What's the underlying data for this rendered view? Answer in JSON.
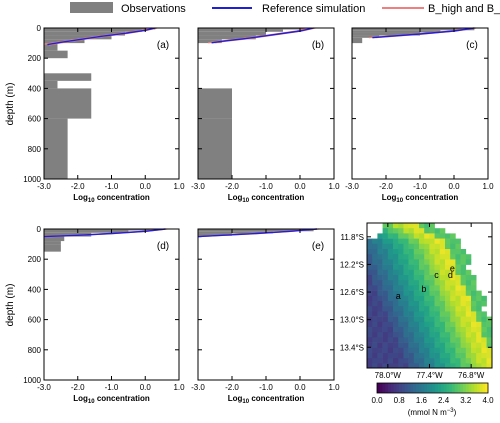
{
  "legend": {
    "items": [
      {
        "label": "Observations",
        "color": "#808080"
      },
      {
        "label": "Reference simulation",
        "color": "#1f1fd6"
      },
      {
        "label": "B_high and B_low",
        "color": "#f08080"
      }
    ]
  },
  "axis_labels": {
    "ylabel": "depth (m)",
    "xlabel_prefix": "Log",
    "xlabel_sub": "10",
    "xlabel_suffix": " concentration"
  },
  "chart_data": [
    {
      "type": "bar",
      "panel": "(a)",
      "xlim": [
        -3.0,
        1.0
      ],
      "ylim": [
        1000,
        0
      ],
      "xticks": [
        "-3.0",
        "-2.0",
        "-1.0",
        "0.0",
        "1.0"
      ],
      "yticks": [
        "0",
        "200",
        "400",
        "600",
        "800",
        "1000"
      ],
      "observations": [
        {
          "top": 0,
          "bottom": 10,
          "value": 0.3
        },
        {
          "top": 10,
          "bottom": 25,
          "value": -0.1
        },
        {
          "top": 25,
          "bottom": 50,
          "value": -0.6
        },
        {
          "top": 50,
          "bottom": 75,
          "value": -1.0
        },
        {
          "top": 75,
          "bottom": 100,
          "value": -1.8
        },
        {
          "top": 100,
          "bottom": 150,
          "value": -2.6
        },
        {
          "top": 150,
          "bottom": 200,
          "value": -2.3
        },
        {
          "top": 200,
          "bottom": 250,
          "value": -3.0
        },
        {
          "top": 250,
          "bottom": 300,
          "value": -3.0
        },
        {
          "top": 300,
          "bottom": 350,
          "value": -1.6
        },
        {
          "top": 350,
          "bottom": 400,
          "value": -2.6
        },
        {
          "top": 400,
          "bottom": 600,
          "value": -1.6
        },
        {
          "top": 600,
          "bottom": 1000,
          "value": -2.3
        }
      ],
      "reference": [
        [
          0.3,
          0
        ],
        [
          0.0,
          15
        ],
        [
          -0.6,
          35
        ],
        [
          -1.3,
          55
        ],
        [
          -2.0,
          78
        ],
        [
          -2.5,
          95
        ],
        [
          -2.9,
          110
        ]
      ],
      "bhigh": [
        [
          0.2,
          0
        ],
        [
          -0.1,
          15
        ],
        [
          -0.7,
          35
        ],
        [
          -1.4,
          55
        ],
        [
          -2.1,
          78
        ],
        [
          -2.6,
          95
        ],
        [
          -3.0,
          108
        ]
      ],
      "blow": [
        [
          0.35,
          0
        ],
        [
          0.05,
          15
        ],
        [
          -0.5,
          35
        ],
        [
          -1.2,
          55
        ],
        [
          -1.9,
          78
        ],
        [
          -2.4,
          95
        ],
        [
          -2.85,
          112
        ]
      ]
    },
    {
      "type": "bar",
      "panel": "(b)",
      "xlim": [
        -3.0,
        1.0
      ],
      "ylim": [
        1000,
        0
      ],
      "xticks": [
        "-3.0",
        "-2.0",
        "-1.0",
        "0.0",
        "1.0"
      ],
      "yticks": [
        "0",
        "200",
        "400",
        "600",
        "800",
        "1000"
      ],
      "observations": [
        {
          "top": 0,
          "bottom": 10,
          "value": 0.3
        },
        {
          "top": 10,
          "bottom": 25,
          "value": -0.5
        },
        {
          "top": 25,
          "bottom": 50,
          "value": -1.0
        },
        {
          "top": 50,
          "bottom": 75,
          "value": -1.3
        },
        {
          "top": 75,
          "bottom": 100,
          "value": -2.3
        },
        {
          "top": 100,
          "bottom": 200,
          "value": -3.0
        },
        {
          "top": 200,
          "bottom": 400,
          "value": -3.0
        },
        {
          "top": 400,
          "bottom": 600,
          "value": -2.0
        },
        {
          "top": 600,
          "bottom": 1000,
          "value": -2.0
        }
      ],
      "reference": [
        [
          0.4,
          0
        ],
        [
          0.0,
          20
        ],
        [
          -0.8,
          45
        ],
        [
          -1.6,
          70
        ],
        [
          -2.3,
          88
        ],
        [
          -2.6,
          98
        ]
      ],
      "bhigh": [
        [
          0.3,
          0
        ],
        [
          -0.1,
          20
        ],
        [
          -0.9,
          45
        ],
        [
          -1.7,
          70
        ],
        [
          -2.4,
          88
        ],
        [
          -2.7,
          98
        ]
      ],
      "blow": [
        [
          0.45,
          0
        ],
        [
          0.05,
          20
        ],
        [
          -0.7,
          45
        ],
        [
          -1.5,
          70
        ],
        [
          -2.2,
          88
        ],
        [
          -2.5,
          98
        ]
      ]
    },
    {
      "type": "bar",
      "panel": "(c)",
      "xlim": [
        -3.0,
        1.0
      ],
      "ylim": [
        1000,
        0
      ],
      "xticks": [
        "-3.0",
        "-2.0",
        "-1.0",
        "0.0",
        "1.0"
      ],
      "yticks": [
        "0",
        "200",
        "400",
        "600",
        "800",
        "1000"
      ],
      "observations": [
        {
          "top": 0,
          "bottom": 15,
          "value": 0.6
        },
        {
          "top": 15,
          "bottom": 30,
          "value": -0.4
        },
        {
          "top": 30,
          "bottom": 50,
          "value": -1.0
        },
        {
          "top": 50,
          "bottom": 65,
          "value": -2.2
        },
        {
          "top": 65,
          "bottom": 100,
          "value": -2.7
        }
      ],
      "reference": [
        [
          0.6,
          0
        ],
        [
          0.0,
          20
        ],
        [
          -1.0,
          40
        ],
        [
          -2.2,
          60
        ],
        [
          -2.4,
          64
        ]
      ],
      "bhigh": [
        [
          0.55,
          0
        ],
        [
          -0.1,
          20
        ],
        [
          -1.1,
          40
        ],
        [
          -2.3,
          60
        ],
        [
          -2.5,
          64
        ]
      ],
      "blow": [
        [
          0.65,
          0
        ],
        [
          0.05,
          20
        ],
        [
          -0.9,
          40
        ],
        [
          -2.1,
          60
        ],
        [
          -2.3,
          64
        ]
      ]
    },
    {
      "type": "bar",
      "panel": "(d)",
      "xlim": [
        -3.0,
        1.0
      ],
      "ylim": [
        1000,
        0
      ],
      "xticks": [
        "-3.0",
        "-2.0",
        "-1.0",
        "0.0",
        "1.0"
      ],
      "yticks": [
        "0",
        "200",
        "400",
        "600",
        "800",
        "1000"
      ],
      "observations": [
        {
          "top": 0,
          "bottom": 10,
          "value": 0.4
        },
        {
          "top": 10,
          "bottom": 25,
          "value": -0.5
        },
        {
          "top": 25,
          "bottom": 50,
          "value": -1.6
        },
        {
          "top": 50,
          "bottom": 80,
          "value": -2.4
        },
        {
          "top": 80,
          "bottom": 100,
          "value": -2.5
        },
        {
          "top": 100,
          "bottom": 150,
          "value": -2.5
        }
      ],
      "reference": [
        [
          0.6,
          0
        ],
        [
          0.0,
          15
        ],
        [
          -1.0,
          30
        ],
        [
          -2.0,
          42
        ],
        [
          -3.0,
          50
        ]
      ],
      "bhigh": [
        [
          0.55,
          0
        ],
        [
          -0.1,
          15
        ],
        [
          -1.1,
          30
        ],
        [
          -2.1,
          42
        ],
        [
          -3.0,
          49
        ]
      ],
      "blow": [
        [
          0.65,
          0
        ],
        [
          0.05,
          15
        ],
        [
          -0.9,
          30
        ],
        [
          -1.9,
          42
        ],
        [
          -3.0,
          52
        ]
      ]
    },
    {
      "type": "bar",
      "panel": "(e)",
      "xlim": [
        -3.0,
        1.0
      ],
      "ylim": [
        1000,
        0
      ],
      "xticks": [
        "-3.0",
        "-2.0",
        "-1.0",
        "0.0",
        "1.0"
      ],
      "yticks": [
        "0",
        "200",
        "400",
        "600",
        "800",
        "1000"
      ],
      "observations": [
        {
          "top": 0,
          "bottom": 15,
          "value": 0.4
        },
        {
          "top": 15,
          "bottom": 30,
          "value": -0.8
        },
        {
          "top": 30,
          "bottom": 45,
          "value": -2.0
        },
        {
          "top": 45,
          "bottom": 55,
          "value": -2.9
        }
      ],
      "reference": [
        [
          0.5,
          0
        ],
        [
          -0.3,
          15
        ],
        [
          -1.3,
          30
        ],
        [
          -2.3,
          42
        ],
        [
          -3.0,
          50
        ]
      ],
      "bhigh": [
        [
          0.45,
          0
        ],
        [
          -0.4,
          15
        ],
        [
          -1.4,
          30
        ],
        [
          -2.4,
          42
        ],
        [
          -3.0,
          49
        ]
      ],
      "blow": [
        [
          0.55,
          0
        ],
        [
          -0.2,
          15
        ],
        [
          -1.2,
          30
        ],
        [
          -2.2,
          42
        ],
        [
          -3.0,
          51
        ]
      ]
    },
    {
      "type": "heatmap",
      "panel": "map",
      "xlim": [
        -78.3,
        -76.5
      ],
      "ylim": [
        -13.7,
        -11.6
      ],
      "xticks": [
        {
          "value": -78.0,
          "label": "78.0°W"
        },
        {
          "value": -77.4,
          "label": "77.4°W"
        },
        {
          "value": -76.8,
          "label": "76.8°W"
        }
      ],
      "yticks": [
        {
          "value": -11.8,
          "label": "11.8°S"
        },
        {
          "value": -12.2,
          "label": "12.2°S"
        },
        {
          "value": -12.6,
          "label": "12.6°S"
        },
        {
          "value": -13.0,
          "label": "13.0°S"
        },
        {
          "value": -13.4,
          "label": "13.4°S"
        }
      ],
      "stations": [
        {
          "label": "a",
          "lon": -77.85,
          "lat": -12.7
        },
        {
          "label": "b",
          "lon": -77.48,
          "lat": -12.6
        },
        {
          "label": "c",
          "lon": -77.3,
          "lat": -12.4
        },
        {
          "label": "d",
          "lon": -77.1,
          "lat": -12.4
        },
        {
          "label": "e",
          "lon": -77.07,
          "lat": -12.3
        }
      ],
      "colorbar": {
        "min": 0.0,
        "max": 4.0,
        "ticks": [
          "0.0",
          "0.8",
          "1.6",
          "2.4",
          "3.2",
          "4.0"
        ],
        "label_prefix": "(mmol N m",
        "label_sup": "−3",
        "label_suffix": ")"
      }
    }
  ]
}
